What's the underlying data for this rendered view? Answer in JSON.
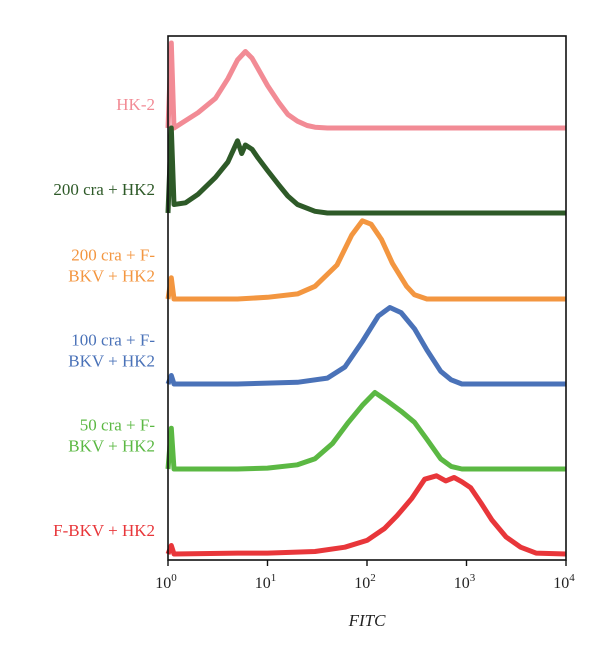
{
  "chart_data": {
    "type": "area",
    "title": "",
    "xlabel": "FITC",
    "ylabel": "",
    "x_scale": "log",
    "xlim": [
      1,
      10000
    ],
    "x_ticks": [
      {
        "base": "10",
        "exp": "0",
        "value": 1
      },
      {
        "base": "10",
        "exp": "1",
        "value": 10
      },
      {
        "base": "10",
        "exp": "2",
        "value": 100
      },
      {
        "base": "10",
        "exp": "3",
        "value": 1000
      },
      {
        "base": "10",
        "exp": "4",
        "value": 10000
      }
    ],
    "grid": false,
    "series": [
      {
        "name": "HK-2",
        "label_lines": [
          "HK-2"
        ],
        "color": "#f28b95",
        "x": [
          1,
          1.08,
          1.15,
          2,
          3,
          4,
          5,
          6,
          7,
          8,
          10,
          13,
          16,
          20,
          25,
          30,
          40,
          100,
          1000,
          10000
        ],
        "y": [
          0,
          1.0,
          0,
          0.18,
          0.35,
          0.58,
          0.8,
          0.9,
          0.82,
          0.7,
          0.5,
          0.3,
          0.16,
          0.08,
          0.03,
          0.01,
          0,
          0,
          0,
          0
        ]
      },
      {
        "name": "200 cra + HK2",
        "label_lines": [
          "200 cra + HK2"
        ],
        "color": "#2e5a28",
        "x": [
          1,
          1.08,
          1.15,
          1.5,
          2,
          3,
          4,
          5,
          5.5,
          6,
          7,
          8,
          10,
          13,
          16,
          20,
          30,
          40,
          100,
          1000,
          10000
        ],
        "y": [
          0,
          1.0,
          0.1,
          0.12,
          0.22,
          0.42,
          0.6,
          0.85,
          0.7,
          0.8,
          0.75,
          0.65,
          0.5,
          0.33,
          0.2,
          0.1,
          0.02,
          0,
          0,
          0,
          0
        ]
      },
      {
        "name": "200 cra + F-BKV + HK2",
        "label_lines": [
          "200 cra + F-",
          "BKV + HK2"
        ],
        "color": "#f39640",
        "x": [
          1,
          1.08,
          1.15,
          5,
          10,
          20,
          30,
          50,
          70,
          90,
          110,
          140,
          180,
          250,
          300,
          400,
          1000,
          10000
        ],
        "y": [
          0,
          0.25,
          0,
          0,
          0.02,
          0.06,
          0.15,
          0.4,
          0.75,
          0.92,
          0.88,
          0.7,
          0.42,
          0.15,
          0.05,
          0,
          0,
          0
        ]
      },
      {
        "name": "100 cra + F-BKV + HK2",
        "label_lines": [
          "100 cra + F-",
          "BKV + HK2"
        ],
        "color": "#4a72b8",
        "x": [
          1,
          1.08,
          1.15,
          5,
          10,
          20,
          40,
          60,
          90,
          130,
          170,
          220,
          300,
          400,
          550,
          700,
          900,
          10000
        ],
        "y": [
          0,
          0.1,
          0,
          0,
          0.01,
          0.02,
          0.07,
          0.2,
          0.5,
          0.8,
          0.9,
          0.84,
          0.65,
          0.4,
          0.15,
          0.05,
          0,
          0
        ]
      },
      {
        "name": "50 cra + F-BKV + HK2",
        "label_lines": [
          "50 cra + F-",
          "BKV + HK2"
        ],
        "color": "#5bb843",
        "x": [
          1,
          1.08,
          1.15,
          5,
          10,
          20,
          30,
          45,
          65,
          90,
          120,
          160,
          220,
          300,
          400,
          550,
          700,
          900,
          10000
        ],
        "y": [
          0,
          0.48,
          0,
          0,
          0.01,
          0.05,
          0.12,
          0.3,
          0.55,
          0.75,
          0.9,
          0.8,
          0.68,
          0.55,
          0.35,
          0.12,
          0.03,
          0,
          0
        ]
      },
      {
        "name": "F-BKV + HK2",
        "label_lines": [
          "F-BKV + HK2"
        ],
        "color": "#e8363a",
        "x": [
          1,
          1.08,
          1.15,
          5,
          10,
          30,
          60,
          100,
          150,
          200,
          280,
          380,
          500,
          620,
          750,
          900,
          1100,
          1400,
          1800,
          2500,
          3500,
          5000,
          10000
        ],
        "y": [
          0,
          0.1,
          0,
          0.01,
          0.01,
          0.03,
          0.08,
          0.16,
          0.3,
          0.45,
          0.65,
          0.88,
          0.92,
          0.86,
          0.9,
          0.85,
          0.78,
          0.6,
          0.4,
          0.2,
          0.08,
          0.01,
          0
        ]
      }
    ]
  }
}
